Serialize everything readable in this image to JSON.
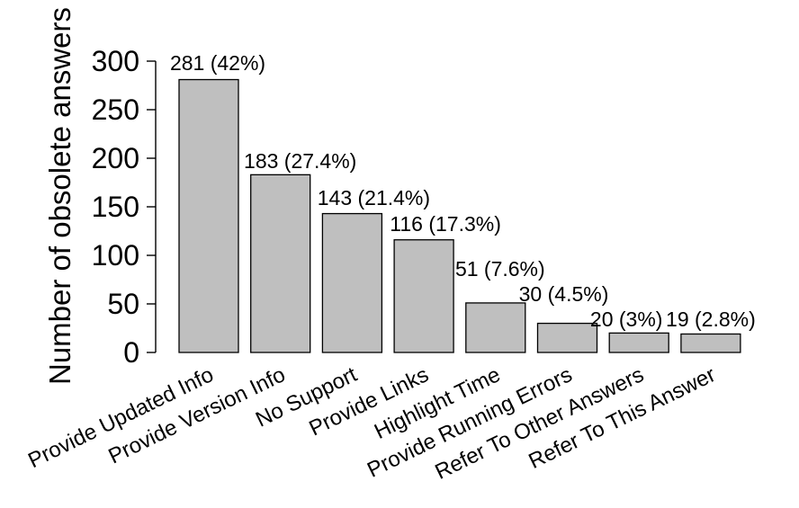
{
  "chart_data": {
    "type": "bar",
    "title": "",
    "xlabel": "",
    "ylabel": "Number of obsolete answers",
    "categories": [
      "Provide Updated Info",
      "Provide Version Info",
      "No Support",
      "Provide Links",
      "Highlight Time",
      "Provide Running Errors",
      "Refer To Other Answers",
      "Refer To This Answer"
    ],
    "values": [
      281,
      183,
      143,
      116,
      51,
      30,
      20,
      19
    ],
    "bar_labels": [
      "281 (42%)",
      "183 (27.4%)",
      "143 (21.4%)",
      "116 (17.3%)",
      "51 (7.6%)",
      "30 (4.5%)",
      "20 (3%)",
      "19 (2.8%)"
    ],
    "percentages": [
      42,
      27.4,
      21.4,
      17.3,
      7.6,
      4.5,
      3,
      2.8
    ],
    "ylim": [
      0,
      300
    ],
    "yticks": [
      0,
      50,
      100,
      150,
      200,
      250,
      300
    ],
    "grid": false,
    "legend": "none",
    "colors": {
      "bar_fill": "#bfbfbf",
      "bar_stroke": "#000000",
      "axis": "#000000",
      "text": "#000000",
      "background": "#ffffff"
    }
  }
}
